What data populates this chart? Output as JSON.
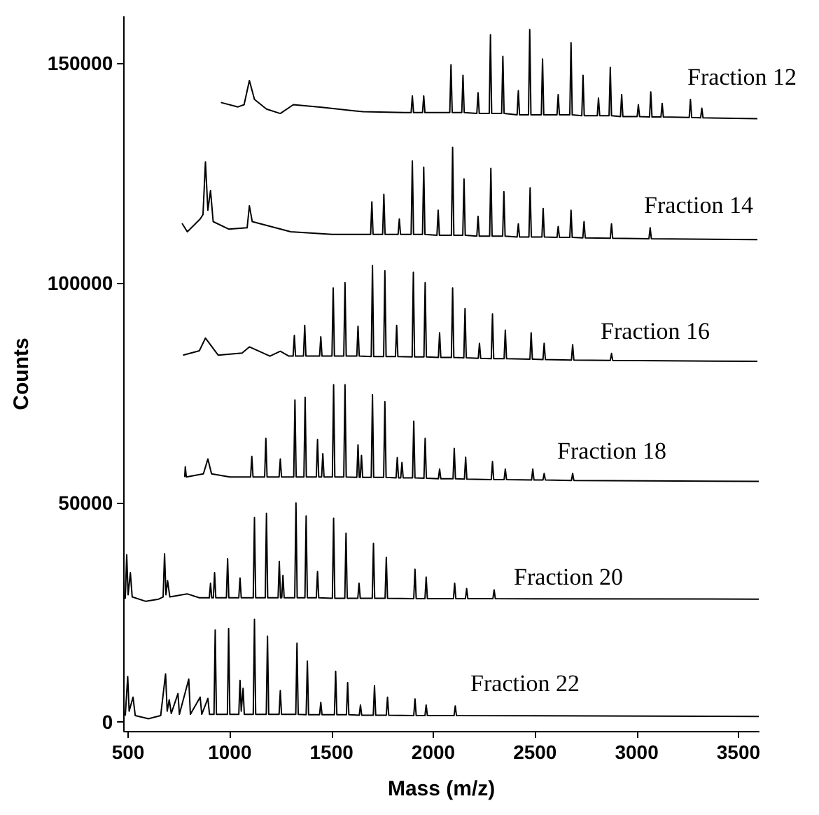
{
  "chart_data": {
    "type": "line",
    "xlabel": "Mass (m/z)",
    "ylabel": "Counts",
    "xlim": [
      480,
      3600
    ],
    "xticks": [
      500,
      1000,
      1500,
      2000,
      2500,
      3000,
      3500
    ],
    "ylim": [
      -2000,
      160500
    ],
    "yticks": [
      0,
      50000,
      100000,
      150000
    ],
    "grid": false,
    "legend": false,
    "marker": "none",
    "line_style": "solid",
    "series": [
      {
        "name": "Fraction 12",
        "color": "#000000",
        "x": [
          956,
          1040,
          1070,
          1096,
          1121,
          1180,
          1248,
          1312,
          1452,
          1655,
          1858,
          1891,
          1897,
          1903,
          1947,
          1953,
          1959,
          2081,
          2087,
          2093,
          2140,
          2146,
          2152,
          2214,
          2220,
          2226,
          2275,
          2281,
          2287,
          2336,
          2342,
          2348,
          2412,
          2418,
          2424,
          2468,
          2474,
          2480,
          2531,
          2537,
          2543,
          2608,
          2614,
          2620,
          2671,
          2677,
          2683,
          2730,
          2736,
          2742,
          2806,
          2812,
          2818,
          2864,
          2870,
          2876,
          2920,
          2926,
          2932,
          3002,
          3008,
          3014,
          3063,
          3069,
          3075,
          3119,
          3125,
          3131,
          3258,
          3264,
          3270,
          3314,
          3320,
          3326,
          3593
        ],
        "values": [
          141000,
          140000,
          140500,
          146000,
          141700,
          139500,
          138500,
          140500,
          139900,
          138900,
          138700,
          138700,
          142500,
          138700,
          138700,
          142500,
          138700,
          138700,
          149600,
          138700,
          138700,
          147200,
          138700,
          138500,
          143200,
          138500,
          138500,
          156400,
          138500,
          138500,
          151500,
          138500,
          138200,
          143700,
          138200,
          138200,
          157600,
          138200,
          138200,
          150900,
          138200,
          138200,
          142800,
          138200,
          138200,
          154600,
          138200,
          138000,
          147200,
          138000,
          138000,
          142000,
          138000,
          138000,
          149000,
          138000,
          137800,
          142800,
          137800,
          137800,
          140500,
          137800,
          137700,
          143400,
          137700,
          137700,
          140800,
          137700,
          137600,
          141700,
          137600,
          137500,
          139700,
          137500,
          137300
        ]
      },
      {
        "name": "Fraction 14",
        "color": "#000000",
        "x": [
          765,
          791,
          854,
          868,
          880,
          892,
          905,
          918,
          994,
          1085,
          1096,
          1110,
          1299,
          1503,
          1630,
          1692,
          1698,
          1704,
          1751,
          1757,
          1763,
          1827,
          1833,
          1839,
          1891,
          1897,
          1903,
          1947,
          1953,
          1959,
          2018,
          2024,
          2030,
          2089,
          2095,
          2101,
          2145,
          2151,
          2157,
          2214,
          2220,
          2226,
          2277,
          2283,
          2289,
          2341,
          2347,
          2353,
          2412,
          2418,
          2424,
          2470,
          2476,
          2482,
          2534,
          2540,
          2546,
          2608,
          2614,
          2620,
          2671,
          2677,
          2683,
          2735,
          2741,
          2747,
          2870,
          2876,
          2882,
          3060,
          3066,
          3072,
          3593
        ],
        "values": [
          113500,
          111600,
          114500,
          115500,
          127500,
          116500,
          121000,
          113900,
          112200,
          112500,
          117500,
          113900,
          111600,
          111000,
          111000,
          111000,
          118400,
          111000,
          111000,
          120100,
          111000,
          111000,
          114500,
          111000,
          111000,
          127700,
          111000,
          111000,
          126300,
          111000,
          110800,
          116500,
          110800,
          110800,
          130800,
          110800,
          110800,
          123600,
          110800,
          110600,
          115100,
          110600,
          110600,
          126000,
          110600,
          110600,
          120700,
          110600,
          110400,
          113400,
          110400,
          110400,
          121600,
          110400,
          110400,
          116900,
          110400,
          110300,
          112800,
          110300,
          110300,
          116500,
          110300,
          110200,
          113900,
          110200,
          110100,
          113400,
          110100,
          110000,
          112500,
          110000,
          109800
        ]
      },
      {
        "name": "Fraction 16",
        "color": "#000000",
        "x": [
          770,
          850,
          880,
          943,
          1060,
          1096,
          1197,
          1248,
          1290,
          1311,
          1317,
          1323,
          1362,
          1368,
          1374,
          1441,
          1447,
          1453,
          1502,
          1508,
          1514,
          1560,
          1566,
          1572,
          1624,
          1630,
          1636,
          1695,
          1701,
          1707,
          1756,
          1762,
          1768,
          1814,
          1820,
          1826,
          1896,
          1902,
          1908,
          1954,
          1960,
          1966,
          2025,
          2031,
          2037,
          2089,
          2095,
          2101,
          2150,
          2156,
          2162,
          2221,
          2227,
          2233,
          2285,
          2291,
          2297,
          2348,
          2354,
          2360,
          2475,
          2481,
          2487,
          2539,
          2545,
          2551,
          2679,
          2685,
          2691,
          2870,
          2876,
          2882,
          3593
        ],
        "values": [
          83500,
          84500,
          87400,
          83500,
          84000,
          85400,
          83300,
          84400,
          83300,
          83300,
          88000,
          83300,
          83300,
          90300,
          83300,
          83300,
          87700,
          83300,
          83300,
          98800,
          83300,
          83300,
          100000,
          83300,
          83300,
          90100,
          83300,
          83200,
          103900,
          83200,
          83200,
          102700,
          83200,
          83200,
          90300,
          83200,
          83100,
          102400,
          83100,
          83100,
          100000,
          83100,
          83000,
          88600,
          83000,
          83000,
          98800,
          83000,
          82900,
          94100,
          82900,
          82800,
          86200,
          82800,
          82700,
          92900,
          82700,
          82700,
          89200,
          82700,
          82600,
          88600,
          82600,
          82500,
          86200,
          82500,
          82400,
          85900,
          82400,
          82300,
          83900,
          82300,
          82100
        ]
      },
      {
        "name": "Fraction 18",
        "color": "#000000",
        "x": [
          778,
          781,
          786,
          870,
          892,
          910,
          1000,
          1102,
          1108,
          1114,
          1171,
          1177,
          1183,
          1242,
          1248,
          1254,
          1314,
          1320,
          1326,
          1364,
          1370,
          1376,
          1425,
          1431,
          1437,
          1451,
          1457,
          1463,
          1504,
          1510,
          1516,
          1560,
          1566,
          1572,
          1624,
          1630,
          1636,
          1641,
          1647,
          1653,
          1695,
          1701,
          1707,
          1756,
          1762,
          1768,
          1817,
          1823,
          1829,
          1840,
          1846,
          1852,
          1898,
          1904,
          1910,
          1954,
          1960,
          1966,
          2025,
          2031,
          2037,
          2097,
          2103,
          2109,
          2153,
          2159,
          2165,
          2285,
          2291,
          2297,
          2348,
          2354,
          2360,
          2483,
          2489,
          2495,
          2539,
          2545,
          2551,
          2679,
          2685,
          2691,
          3600
        ],
        "values": [
          55800,
          58100,
          55800,
          56500,
          59900,
          56500,
          55800,
          55800,
          60500,
          55800,
          55800,
          64600,
          55800,
          55800,
          59900,
          55800,
          55800,
          73300,
          55800,
          55800,
          73900,
          55800,
          55800,
          64300,
          55800,
          55800,
          61100,
          55800,
          55800,
          76800,
          55800,
          55800,
          76800,
          55800,
          55700,
          63100,
          55700,
          55700,
          60700,
          55700,
          55700,
          74500,
          55700,
          55700,
          72900,
          55700,
          55600,
          60200,
          55600,
          55600,
          59100,
          55600,
          55600,
          68500,
          55600,
          55500,
          64600,
          55500,
          55400,
          57600,
          55400,
          55400,
          62300,
          55400,
          55300,
          60300,
          55300,
          55200,
          59300,
          55200,
          55200,
          57600,
          55200,
          55100,
          57600,
          55100,
          55100,
          56600,
          55100,
          55000,
          56600,
          55000,
          54800
        ]
      },
      {
        "name": "Fraction 20",
        "color": "#000000",
        "x": [
          486,
          493,
          500,
          511,
          520,
          587,
          650,
          672,
          679,
          686,
          694,
          705,
          790,
          850,
          899,
          905,
          911,
          919,
          925,
          931,
          983,
          989,
          995,
          1044,
          1050,
          1056,
          1115,
          1121,
          1127,
          1174,
          1180,
          1186,
          1237,
          1243,
          1249,
          1255,
          1261,
          1267,
          1319,
          1325,
          1331,
          1369,
          1375,
          1381,
          1425,
          1431,
          1437,
          1504,
          1510,
          1516,
          1565,
          1571,
          1577,
          1629,
          1635,
          1641,
          1700,
          1706,
          1712,
          1763,
          1769,
          1775,
          1904,
          1910,
          1916,
          1959,
          1965,
          1971,
          2099,
          2105,
          2111,
          2158,
          2164,
          2170,
          2293,
          2299,
          2305,
          3600
        ],
        "values": [
          28100,
          38100,
          29000,
          34000,
          28500,
          27500,
          28000,
          28500,
          38300,
          29000,
          32200,
          28500,
          29200,
          28300,
          28300,
          31600,
          28300,
          28300,
          34000,
          28300,
          28300,
          37200,
          28300,
          28300,
          32800,
          28300,
          28300,
          46600,
          28300,
          28300,
          47500,
          28300,
          28300,
          36600,
          28300,
          28300,
          33400,
          28300,
          28300,
          49900,
          28300,
          28300,
          46900,
          28300,
          28300,
          34300,
          28300,
          28200,
          46400,
          28200,
          28200,
          43000,
          28200,
          28200,
          31600,
          28200,
          28200,
          40700,
          28200,
          28200,
          37500,
          28200,
          28100,
          34800,
          28100,
          28100,
          33000,
          28100,
          28100,
          31600,
          28100,
          28100,
          30400,
          28100,
          28100,
          30100,
          28100,
          28000
        ]
      },
      {
        "name": "Fraction 22",
        "color": "#000000",
        "x": [
          486,
          498,
          505,
          524,
          535,
          600,
          660,
          684,
          692,
          702,
          712,
          745,
          752,
          798,
          806,
          854,
          862,
          892,
          900,
          922,
          928,
          934,
          988,
          994,
          1000,
          1044,
          1050,
          1056,
          1065,
          1071,
          1115,
          1121,
          1127,
          1179,
          1185,
          1191,
          1242,
          1248,
          1254,
          1324,
          1330,
          1336,
          1375,
          1381,
          1387,
          1441,
          1447,
          1453,
          1514,
          1520,
          1526,
          1573,
          1579,
          1585,
          1636,
          1642,
          1648,
          1705,
          1711,
          1717,
          1769,
          1775,
          1781,
          1904,
          1910,
          1916,
          1959,
          1965,
          1971,
          2102,
          2108,
          2114,
          3600
        ],
        "values": [
          1500,
          10400,
          2500,
          5700,
          1500,
          800,
          1500,
          11000,
          2500,
          5100,
          2000,
          6500,
          1800,
          9800,
          1800,
          5700,
          1800,
          5400,
          1800,
          1800,
          21000,
          1800,
          1800,
          21300,
          1800,
          1800,
          9500,
          2500,
          7700,
          1800,
          1800,
          23400,
          1800,
          1800,
          19600,
          1800,
          1800,
          7200,
          1800,
          1800,
          18000,
          1800,
          1700,
          13900,
          1700,
          1700,
          4500,
          1700,
          1700,
          11600,
          1700,
          1700,
          9000,
          1700,
          1600,
          3900,
          1600,
          1600,
          8300,
          1600,
          1600,
          5700,
          1600,
          1500,
          5300,
          1500,
          1500,
          3900,
          1500,
          1500,
          3700,
          1500,
          1300
        ]
      }
    ]
  }
}
